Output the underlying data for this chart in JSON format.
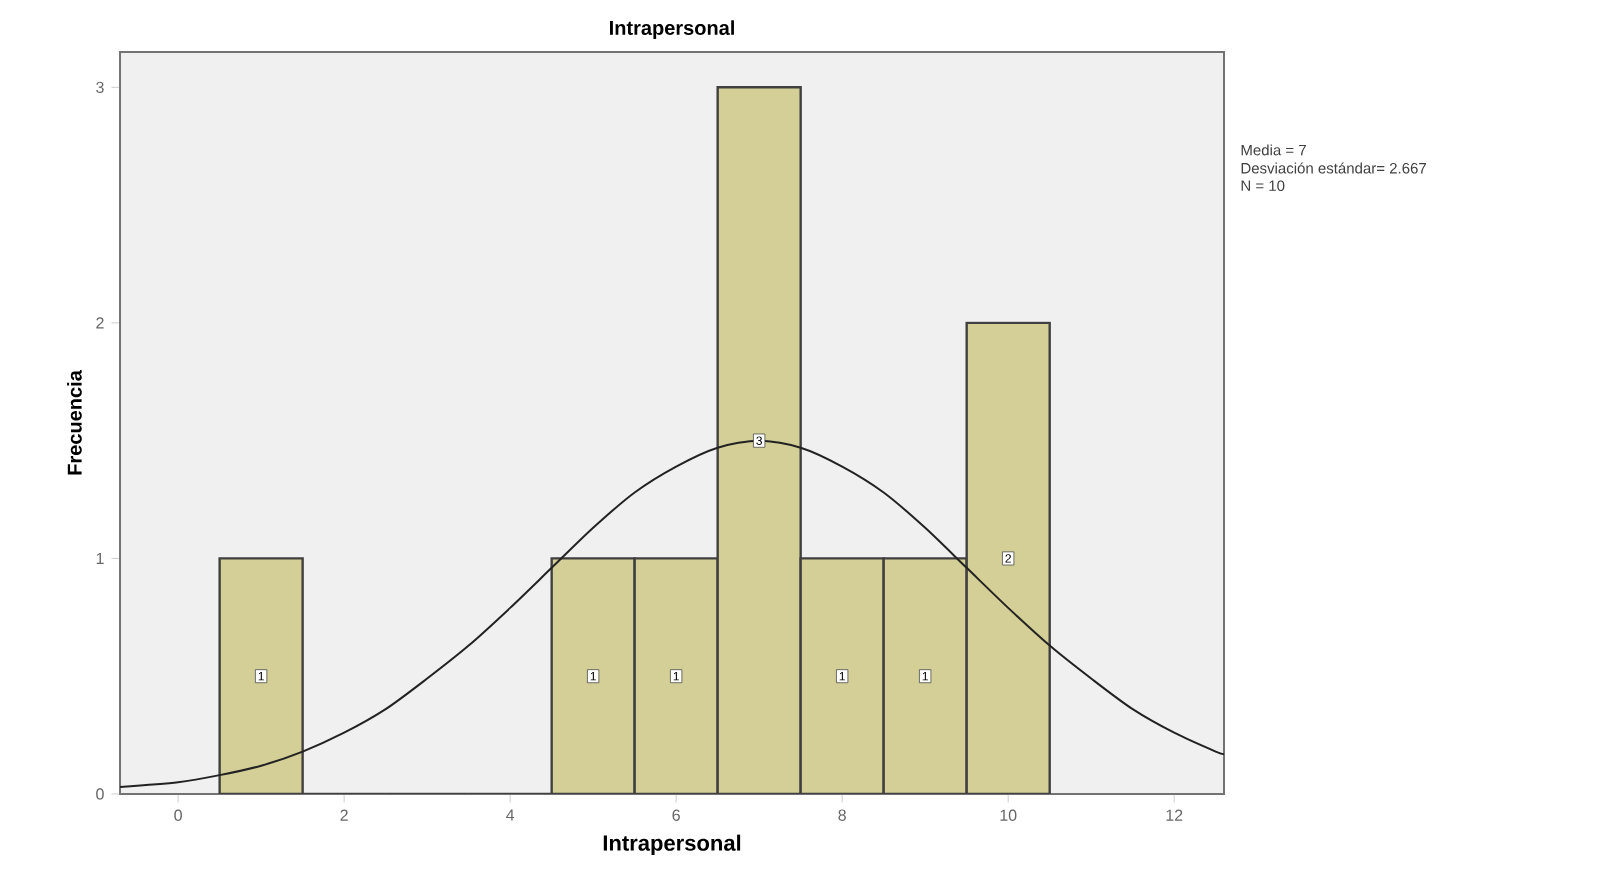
{
  "chart_data": {
    "type": "histogram",
    "title": "Intrapersonal",
    "xlabel": "Intrapersonal",
    "ylabel": "Frecuencia",
    "bins": [
      0.5,
      1.5,
      2.5,
      3.5,
      4.5,
      5.5,
      6.5,
      7.5,
      8.5,
      9.5,
      10.5
    ],
    "values": [
      1,
      0,
      0,
      0,
      1,
      1,
      3,
      1,
      1,
      2
    ],
    "value_labels": [
      "1",
      null,
      null,
      null,
      "1",
      "1",
      "3",
      "1",
      "1",
      "2"
    ],
    "color": "#d4cf96",
    "series": [
      {
        "type": "line",
        "color": "#222222",
        "x": [
          -0.7,
          0,
          0.5,
          1,
          1.5,
          2,
          2.5,
          3,
          3.5,
          4,
          4.5,
          5,
          5.5,
          6,
          6.5,
          7,
          7.5,
          8,
          8.5,
          9,
          9.5,
          10,
          10.5,
          11,
          11.5,
          12,
          12.5,
          12.6
        ],
        "values": [
          0.03,
          0.05,
          0.08,
          0.12,
          0.18,
          0.26,
          0.36,
          0.49,
          0.63,
          0.79,
          0.96,
          1.13,
          1.28,
          1.39,
          1.47,
          1.5,
          1.47,
          1.39,
          1.28,
          1.13,
          0.96,
          0.79,
          0.63,
          0.49,
          0.36,
          0.26,
          0.18,
          0.17
        ]
      }
    ],
    "xlim": [
      -0.7,
      12.6
    ],
    "ylim": [
      0,
      3.15
    ],
    "xticks": [
      0,
      2,
      4,
      6,
      8,
      10,
      12
    ],
    "yticks": [
      0,
      1,
      2,
      3
    ],
    "grid": false,
    "annotations": [
      "Media = 7",
      "Desviación estándar= 2.667",
      "N = 10"
    ]
  }
}
